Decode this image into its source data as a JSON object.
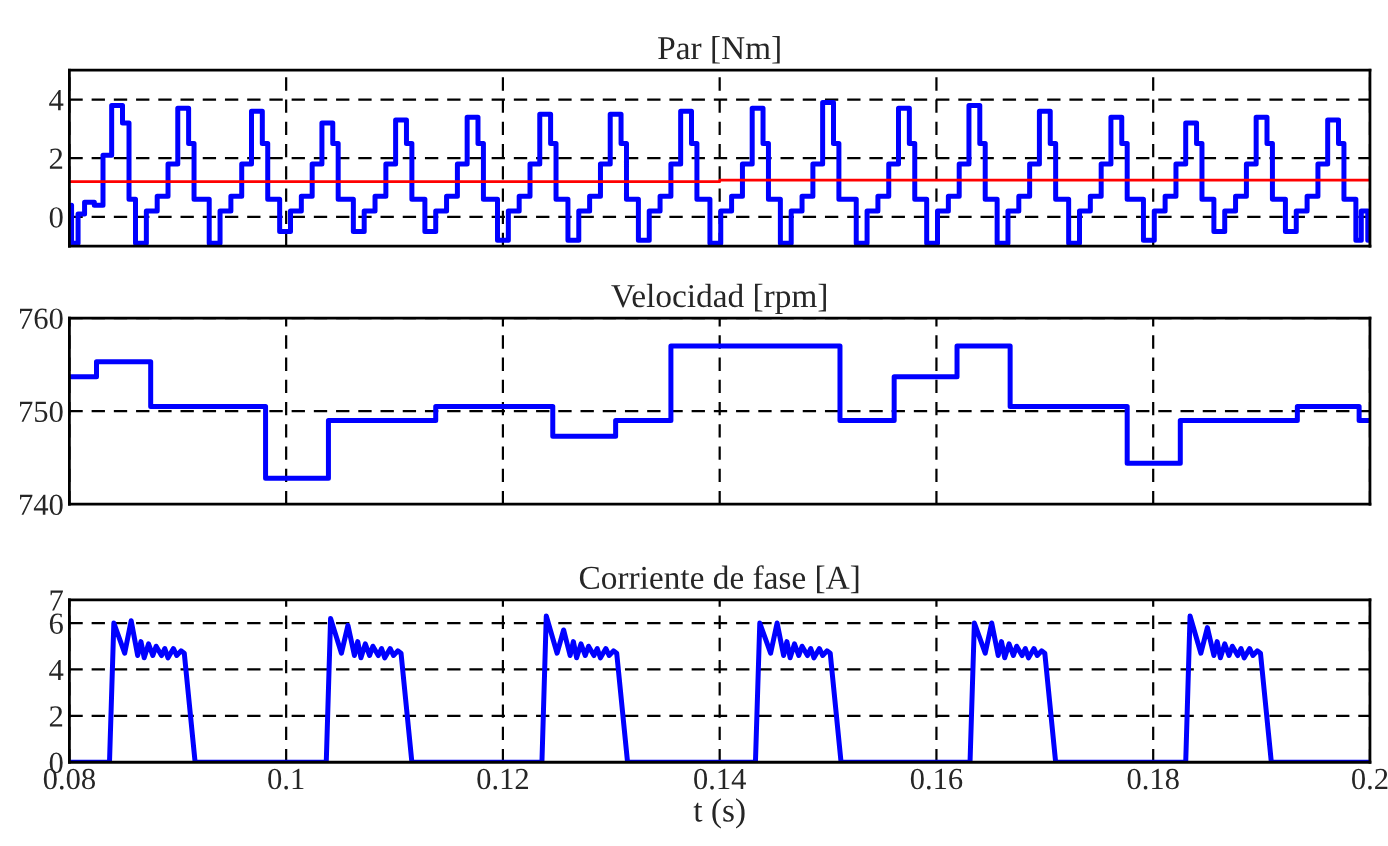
{
  "chart_data": [
    {
      "type": "step",
      "title": "Par [Nm]",
      "xlim": [
        0.08,
        0.2
      ],
      "xticks": [
        0.08,
        0.1,
        0.12,
        0.14,
        0.16,
        0.18,
        0.2
      ],
      "ylim": [
        -1,
        5
      ],
      "yticks": [
        0,
        2,
        4
      ],
      "grid": true,
      "tick_labels": "y",
      "series": [
        {
          "color": "#0000ff",
          "x": [
            0.08,
            0.0802,
            0.0808,
            0.0814,
            0.0823,
            0.0831,
            0.0839,
            0.0849,
            0.0855,
            0.0861,
            0.0871,
            0.0881,
            0.0891,
            0.09,
            0.091,
            0.0915,
            0.0929,
            0.0939,
            0.0949,
            0.0959,
            0.0968,
            0.0978,
            0.0983,
            0.0994,
            0.1004,
            0.1014,
            0.1024,
            0.1033,
            0.1043,
            0.1048,
            0.1062,
            0.1072,
            0.1082,
            0.1092,
            0.1101,
            0.1111,
            0.1116,
            0.1128,
            0.1138,
            0.1148,
            0.1158,
            0.1167,
            0.1177,
            0.1182,
            0.1195,
            0.1205,
            0.1215,
            0.1225,
            0.1234,
            0.1244,
            0.1249,
            0.126,
            0.127,
            0.128,
            0.129,
            0.1299,
            0.1309,
            0.1314,
            0.1325,
            0.1335,
            0.1345,
            0.1355,
            0.1364,
            0.1374,
            0.1379,
            0.1391,
            0.1401,
            0.1411,
            0.1421,
            0.143,
            0.144,
            0.1445,
            0.1456,
            0.1466,
            0.1476,
            0.1486,
            0.1495,
            0.1505,
            0.151,
            0.1526,
            0.1536,
            0.1546,
            0.1556,
            0.1565,
            0.1575,
            0.158,
            0.1591,
            0.1601,
            0.1611,
            0.1621,
            0.163,
            0.164,
            0.1645,
            0.1656,
            0.1666,
            0.1676,
            0.1686,
            0.1695,
            0.1705,
            0.171,
            0.1722,
            0.1732,
            0.1742,
            0.1752,
            0.1761,
            0.1771,
            0.1776,
            0.1791,
            0.1801,
            0.1811,
            0.1821,
            0.183,
            0.184,
            0.1845,
            0.1856,
            0.1866,
            0.1876,
            0.1886,
            0.1895,
            0.1905,
            0.191,
            0.1922,
            0.1932,
            0.1942,
            0.1952,
            0.1961,
            0.1971,
            0.1976,
            0.1987,
            0.1992,
            0.1998,
            0.2
          ],
          "values": [
            0.4,
            -0.9,
            0.1,
            0.5,
            0.4,
            2.1,
            3.8,
            3.2,
            0.6,
            -0.9,
            0.2,
            0.7,
            1.8,
            3.7,
            2.5,
            0.6,
            -0.9,
            0.2,
            0.7,
            1.8,
            3.6,
            2.5,
            0.6,
            -0.5,
            0.2,
            0.7,
            1.8,
            3.2,
            2.5,
            0.6,
            -0.5,
            0.2,
            0.7,
            1.8,
            3.3,
            2.5,
            0.6,
            -0.5,
            0.2,
            0.7,
            1.8,
            3.4,
            2.5,
            0.6,
            -0.8,
            0.2,
            0.7,
            1.8,
            3.5,
            2.5,
            0.6,
            -0.8,
            0.2,
            0.7,
            1.8,
            3.5,
            2.5,
            0.6,
            -0.8,
            0.2,
            0.7,
            1.8,
            3.6,
            2.5,
            0.6,
            -0.9,
            0.2,
            0.7,
            1.8,
            3.7,
            2.5,
            0.6,
            -0.9,
            0.2,
            0.7,
            1.8,
            3.9,
            2.5,
            0.6,
            -0.9,
            0.2,
            0.7,
            1.8,
            3.7,
            2.5,
            0.6,
            -0.9,
            0.2,
            0.7,
            1.8,
            3.8,
            2.5,
            0.6,
            -0.9,
            0.2,
            0.7,
            1.8,
            3.6,
            2.5,
            0.6,
            -0.9,
            0.2,
            0.7,
            1.8,
            3.4,
            2.5,
            0.6,
            -0.8,
            0.2,
            0.7,
            1.8,
            3.2,
            2.5,
            0.6,
            -0.5,
            0.2,
            0.7,
            1.8,
            3.4,
            2.5,
            0.6,
            -0.5,
            0.2,
            0.7,
            1.8,
            3.3,
            2.5,
            0.6,
            -0.8,
            0.2,
            -0.8,
            -0.8
          ]
        },
        {
          "color": "#ff0000",
          "x": [
            0.08,
            0.14,
            0.2
          ],
          "values": [
            1.2,
            1.25,
            1.25
          ]
        }
      ]
    },
    {
      "type": "step",
      "title": "Velocidad [rpm]",
      "xlim": [
        0.08,
        0.2
      ],
      "xticks": [
        0.08,
        0.1,
        0.12,
        0.14,
        0.16,
        0.18,
        0.2
      ],
      "ylim": [
        740,
        760
      ],
      "yticks": [
        740,
        750,
        760
      ],
      "grid": true,
      "tick_labels": "y",
      "series": [
        {
          "color": "#0000ff",
          "x": [
            0.08,
            0.0825,
            0.0875,
            0.0981,
            0.1039,
            0.1138,
            0.1246,
            0.1304,
            0.1355,
            0.1511,
            0.1561,
            0.1619,
            0.1668,
            0.1776,
            0.1825,
            0.1933,
            0.199,
            0.2
          ],
          "values": [
            753.7,
            755.3,
            750.5,
            742.8,
            749.0,
            750.5,
            747.3,
            749.0,
            757.0,
            749.0,
            753.7,
            757.0,
            750.5,
            744.4,
            749.0,
            750.5,
            749.0,
            749.0
          ]
        }
      ]
    },
    {
      "type": "line",
      "title": "Corriente de fase [A]",
      "xlabel": "t (s)",
      "xlim": [
        0.08,
        0.2
      ],
      "xticks": [
        0.08,
        0.1,
        0.12,
        0.14,
        0.16,
        0.18,
        0.2
      ],
      "ylim": [
        0,
        7
      ],
      "yticks": [
        0,
        2,
        4,
        6,
        7
      ],
      "grid": true,
      "series": [
        {
          "color": "#0000ff",
          "x": [
            0.08,
            0.0837,
            0.0841,
            0.0851,
            0.0857,
            0.0863,
            0.0866,
            0.0869,
            0.0873,
            0.0877,
            0.088,
            0.0885,
            0.0888,
            0.0891,
            0.0896,
            0.0899,
            0.0903,
            0.0906,
            0.0916,
            0.1037,
            0.1041,
            0.1051,
            0.1057,
            0.1063,
            0.1066,
            0.1069,
            0.1073,
            0.1077,
            0.108,
            0.1085,
            0.1088,
            0.1091,
            0.1096,
            0.1099,
            0.1103,
            0.1106,
            0.1116,
            0.1236,
            0.124,
            0.125,
            0.1256,
            0.1262,
            0.1265,
            0.1268,
            0.1272,
            0.1276,
            0.1279,
            0.1284,
            0.1287,
            0.129,
            0.1295,
            0.1298,
            0.1302,
            0.1305,
            0.1315,
            0.1433,
            0.1437,
            0.1447,
            0.1453,
            0.1459,
            0.1462,
            0.1465,
            0.1469,
            0.1473,
            0.1476,
            0.1481,
            0.1484,
            0.1487,
            0.1492,
            0.1495,
            0.1499,
            0.1502,
            0.1512,
            0.1631,
            0.1635,
            0.1645,
            0.1651,
            0.1657,
            0.166,
            0.1663,
            0.1667,
            0.1671,
            0.1674,
            0.1679,
            0.1682,
            0.1685,
            0.169,
            0.1693,
            0.1697,
            0.17,
            0.171,
            0.183,
            0.1834,
            0.1844,
            0.185,
            0.1856,
            0.1859,
            0.1862,
            0.1866,
            0.187,
            0.1873,
            0.1878,
            0.1881,
            0.1884,
            0.1889,
            0.1892,
            0.1896,
            0.1899,
            0.1909,
            0.2
          ],
          "values": [
            0,
            0,
            6.0,
            4.7,
            6.1,
            4.6,
            5.2,
            4.5,
            5.1,
            4.6,
            5.0,
            4.6,
            4.9,
            4.5,
            4.9,
            4.6,
            4.8,
            4.7,
            0,
            0,
            6.2,
            4.7,
            5.9,
            4.6,
            5.2,
            4.5,
            5.1,
            4.6,
            5.0,
            4.6,
            4.9,
            4.5,
            4.9,
            4.6,
            4.8,
            4.7,
            0,
            0,
            6.3,
            4.7,
            5.7,
            4.6,
            5.2,
            4.5,
            5.1,
            4.6,
            5.0,
            4.6,
            4.9,
            4.5,
            4.9,
            4.6,
            4.8,
            4.7,
            0,
            0,
            6.0,
            4.7,
            6.0,
            4.6,
            5.2,
            4.5,
            5.1,
            4.6,
            5.0,
            4.6,
            4.9,
            4.5,
            4.9,
            4.6,
            4.8,
            4.7,
            0,
            0,
            6.0,
            4.7,
            6.0,
            4.6,
            5.2,
            4.5,
            5.1,
            4.6,
            5.0,
            4.6,
            4.9,
            4.5,
            4.9,
            4.6,
            4.8,
            4.7,
            0,
            0,
            6.3,
            4.7,
            5.8,
            4.6,
            5.2,
            4.5,
            5.1,
            4.6,
            5.0,
            4.6,
            4.9,
            4.5,
            4.9,
            4.6,
            4.8,
            4.7,
            0,
            0
          ]
        }
      ]
    }
  ]
}
